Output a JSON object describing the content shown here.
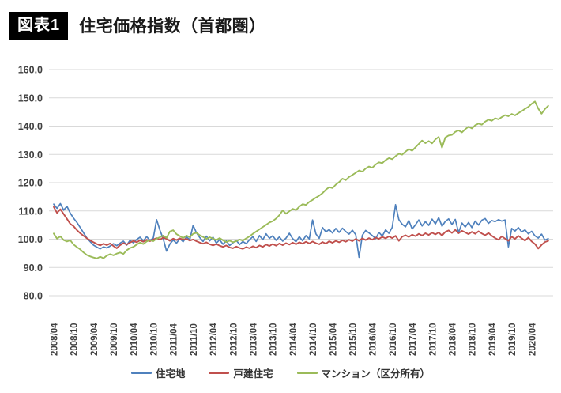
{
  "header": {
    "badge": "図表1",
    "title": "住宅価格指数（首都圏）"
  },
  "chart_data": {
    "type": "line",
    "title": "住宅価格指数（首都圏）",
    "x_description": "monthly data from 2008/04, tick labels every 6 months",
    "x_tick_labels": [
      "2008/04",
      "2008/10",
      "2009/04",
      "2009/10",
      "2010/04",
      "2010/10",
      "2011/04",
      "2011/10",
      "2012/04",
      "2012/10",
      "2013/04",
      "2013/10",
      "2014/04",
      "2014/10",
      "2015/04",
      "2015/10",
      "2016/04",
      "2016/10",
      "2017/04",
      "2017/10",
      "2018/04",
      "2018/10",
      "2019/04",
      "2019/10",
      "2020/04"
    ],
    "ylim": [
      80,
      160
    ],
    "y_tick_labels": [
      "160.0",
      "150.0",
      "140.0",
      "130.0",
      "120.0",
      "110.0",
      "100.0",
      "90.0",
      "80.0"
    ],
    "grid": true,
    "legend_position": "bottom",
    "colors": {
      "grid": "#D9D9D9",
      "axis_text": "#404040"
    },
    "series": [
      {
        "name": "住宅地",
        "color": "#4F81BD",
        "values": [
          112.4,
          110.9,
          112.6,
          110.3,
          111.6,
          109.2,
          107.4,
          105.9,
          104.1,
          102.2,
          100.4,
          99.1,
          97.9,
          97.2,
          96.6,
          97.3,
          96.9,
          97.6,
          98.4,
          97.7,
          98.6,
          99.3,
          97.9,
          99.6,
          98.7,
          99.9,
          100.7,
          99.4,
          100.9,
          99.6,
          100.4,
          106.9,
          103.2,
          100.1,
          95.8,
          98.3,
          99.7,
          98.6,
          100.2,
          99.1,
          100.8,
          99.8,
          104.9,
          102.3,
          100.6,
          99.2,
          101.1,
          99.4,
          100.7,
          98.6,
          99.8,
          98.2,
          99.4,
          97.8,
          98.7,
          99.6,
          98.1,
          99.2,
          98.4,
          99.8,
          100.9,
          99.2,
          101.3,
          99.8,
          101.9,
          100.3,
          101.2,
          99.6,
          100.8,
          99.3,
          100.4,
          102.1,
          100.2,
          99.1,
          100.9,
          99.4,
          101.3,
          100.1,
          106.8,
          101.9,
          100.3,
          104.1,
          102.6,
          103.4,
          102.2,
          103.8,
          102.4,
          103.9,
          102.7,
          101.8,
          103.2,
          101.6,
          93.6,
          101.4,
          103.1,
          102.2,
          101.3,
          100.2,
          102.4,
          101.1,
          103.3,
          102.1,
          104.2,
          112.2,
          106.9,
          105.3,
          104.4,
          106.6,
          103.6,
          105.1,
          106.8,
          104.7,
          106.2,
          104.9,
          107.1,
          105.4,
          107.6,
          104.6,
          106.3,
          107.2,
          105.2,
          107.0,
          102.3,
          105.7,
          104.3,
          105.9,
          104.1,
          106.4,
          105.0,
          106.7,
          107.3,
          105.6,
          106.6,
          106.2,
          106.9,
          106.4,
          106.8,
          97.3,
          103.8,
          102.9,
          104.1,
          102.6,
          103.3,
          101.9,
          102.8,
          101.2,
          100.4,
          101.8,
          99.7,
          100.2
        ]
      },
      {
        "name": "戸建住宅",
        "color": "#C0504D",
        "values": [
          111.4,
          109.3,
          110.6,
          108.9,
          107.2,
          105.4,
          104.6,
          103.2,
          102.1,
          101.2,
          100.3,
          99.6,
          98.9,
          98.3,
          97.8,
          98.4,
          97.9,
          98.5,
          97.6,
          96.8,
          97.9,
          98.6,
          98.1,
          98.8,
          99.4,
          98.9,
          99.6,
          99.1,
          99.8,
          99.3,
          99.9,
          100.4,
          99.8,
          100.6,
          100.1,
          99.4,
          100.2,
          99.7,
          100.3,
          99.8,
          100.1,
          99.5,
          99.9,
          99.3,
          98.8,
          98.4,
          98.9,
          98.2,
          97.8,
          98.3,
          97.7,
          97.3,
          97.8,
          97.1,
          96.8,
          97.4,
          96.9,
          96.6,
          97.2,
          96.8,
          97.5,
          97.0,
          97.8,
          97.3,
          98.1,
          97.6,
          98.3,
          97.7,
          98.5,
          97.9,
          98.6,
          98.1,
          98.8,
          98.2,
          98.9,
          98.4,
          99.1,
          98.5,
          99.2,
          98.6,
          98.2,
          99.0,
          98.4,
          99.3,
          98.7,
          99.4,
          98.9,
          99.6,
          99.1,
          99.8,
          99.3,
          100.1,
          99.4,
          100.3,
          99.7,
          100.4,
          99.8,
          100.6,
          100.1,
          100.8,
          100.3,
          101.0,
          100.4,
          101.2,
          99.4,
          100.9,
          101.4,
          100.8,
          101.6,
          101.1,
          101.9,
          101.3,
          102.1,
          101.5,
          102.3,
          101.7,
          102.4,
          101.3,
          102.6,
          103.1,
          102.2,
          103.3,
          102.1,
          103.0,
          102.4,
          101.8,
          102.6,
          101.9,
          102.8,
          102.0,
          101.4,
          102.2,
          101.2,
          100.4,
          99.8,
          101.0,
          100.2,
          99.4,
          100.9,
          100.1,
          101.2,
          100.3,
          99.5,
          100.6,
          99.2,
          98.3,
          96.7,
          98.0,
          99.0,
          99.4
        ]
      },
      {
        "name": "マンション（区分所有）",
        "color": "#9BBB59",
        "values": [
          102.0,
          100.2,
          101.0,
          99.7,
          99.2,
          99.6,
          98.1,
          97.2,
          96.4,
          95.3,
          94.4,
          93.9,
          93.5,
          93.2,
          93.8,
          93.3,
          94.2,
          94.7,
          94.3,
          94.9,
          95.3,
          94.8,
          96.1,
          96.9,
          97.3,
          98.1,
          98.8,
          98.3,
          99.2,
          99.7,
          99.3,
          100.2,
          100.7,
          101.3,
          100.5,
          102.7,
          103.2,
          101.8,
          101.1,
          100.4,
          101.3,
          100.7,
          101.9,
          102.3,
          101.4,
          100.8,
          100.1,
          100.7,
          100.2,
          99.7,
          100.4,
          99.6,
          99.0,
          99.5,
          98.9,
          99.3,
          99.9,
          99.5,
          100.3,
          101.0,
          101.9,
          102.7,
          103.5,
          104.3,
          105.1,
          105.9,
          106.4,
          107.3,
          108.5,
          110.2,
          109.0,
          109.9,
          110.7,
          110.3,
          111.5,
          112.4,
          112.1,
          113.2,
          113.9,
          114.7,
          115.4,
          116.3,
          117.5,
          118.4,
          118.1,
          119.3,
          120.2,
          121.4,
          120.9,
          122.0,
          122.7,
          123.5,
          124.3,
          123.9,
          125.0,
          125.7,
          125.3,
          126.4,
          127.2,
          126.9,
          128.0,
          128.7,
          128.3,
          129.4,
          130.2,
          129.9,
          131.0,
          131.9,
          131.3,
          132.5,
          133.7,
          134.9,
          134.0,
          134.7,
          133.9,
          135.3,
          136.2,
          132.4,
          136.0,
          136.7,
          136.9,
          138.0,
          138.5,
          137.8,
          138.9,
          139.8,
          139.2,
          140.3,
          140.9,
          140.5,
          141.6,
          142.3,
          141.9,
          142.8,
          142.4,
          143.2,
          143.9,
          143.5,
          144.3,
          143.8,
          144.6,
          145.3,
          146.1,
          146.8,
          147.9,
          148.7,
          146.2,
          144.4,
          146.0,
          147.2
        ]
      }
    ]
  }
}
